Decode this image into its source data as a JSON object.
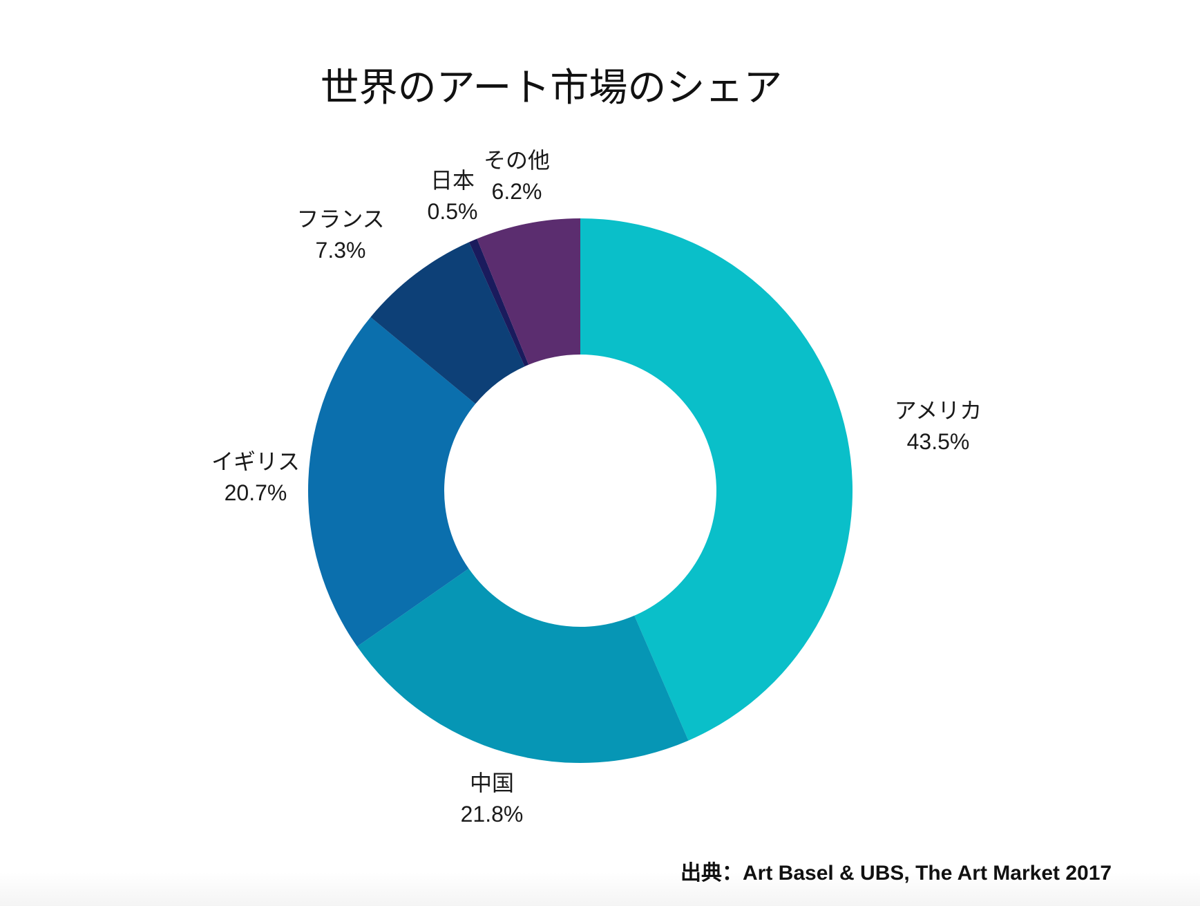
{
  "title": "世界のアート市場のシェア",
  "source": "出典：Art Basel & UBS, The Art Market 2017",
  "chart_data": {
    "type": "pie",
    "subtype": "donut",
    "title": "世界のアート市場のシェア",
    "hole_ratio": 0.5,
    "start_angle_deg": 0,
    "direction": "clockwise",
    "legend": "none",
    "label_position": "outside",
    "background": "#ffffff",
    "series": [
      {
        "label": "アメリカ",
        "value": 43.5,
        "display": "43.5%",
        "color": "#0abfc9"
      },
      {
        "label": "中国",
        "value": 21.8,
        "display": "21.8%",
        "color": "#0696b5"
      },
      {
        "label": "イギリス",
        "value": 20.7,
        "display": "20.7%",
        "color": "#0b6fad"
      },
      {
        "label": "フランス",
        "value": 7.3,
        "display": "7.3%",
        "color": "#0d4077"
      },
      {
        "label": "日本",
        "value": 0.5,
        "display": "0.5%",
        "color": "#1a1b5d"
      },
      {
        "label": "その他",
        "value": 6.2,
        "display": "6.2%",
        "color": "#5b2d6f"
      }
    ]
  }
}
